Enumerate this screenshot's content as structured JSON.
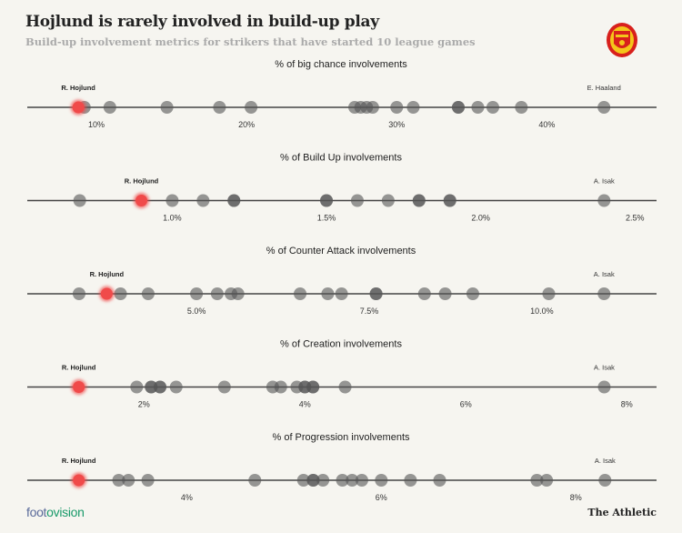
{
  "title": "Hojlund is rarely involved in build-up play",
  "subtitle": "Build-up involvement metrics for strikers that have started 10 league games",
  "footer": {
    "source_a": "foot",
    "source_b": "ovision",
    "publisher": "The Athletic"
  },
  "logo": {
    "name": "manchester-united-crest",
    "text": "Manchester United"
  },
  "colors": {
    "background": "#f6f5f0",
    "highlight": "#f04a4a",
    "dot": "#555555",
    "axis": "#444444"
  },
  "chart_data": [
    {
      "type": "scatter",
      "title": "% of big chance involvements",
      "xlim": [
        5.4,
        47.3
      ],
      "ticks": [
        10,
        20,
        30,
        40
      ],
      "tick_labels": [
        "10%",
        "20%",
        "30%",
        "40%"
      ],
      "highlight": {
        "name": "R. Hojlund",
        "value": 8.8
      },
      "top": {
        "name": "E. Haaland",
        "value": 43.8
      },
      "values": [
        9.2,
        10.9,
        14.7,
        18.2,
        20.3,
        27.2,
        27.6,
        28.0,
        28.4,
        30.0,
        31.1,
        34.1,
        34.1,
        35.4,
        36.4,
        38.3
      ]
    },
    {
      "type": "scatter",
      "title": "% of Build Up involvements",
      "xlim": [
        0.53,
        2.57
      ],
      "ticks": [
        1.0,
        1.5,
        2.0,
        2.5
      ],
      "tick_labels": [
        "1.0%",
        "1.5%",
        "2.0%",
        "2.5%"
      ],
      "highlight": {
        "name": "R. Hojlund",
        "value": 0.9
      },
      "top": {
        "name": "A. Isak",
        "value": 2.4
      },
      "values": [
        0.7,
        1.0,
        1.1,
        1.2,
        1.2,
        1.5,
        1.5,
        1.6,
        1.7,
        1.8,
        1.8,
        1.9,
        1.9
      ]
    },
    {
      "type": "scatter",
      "title": "% of Counter Attack involvements",
      "xlim": [
        2.55,
        11.66
      ],
      "ticks": [
        5.0,
        7.5,
        10.0
      ],
      "tick_labels": [
        "5.0%",
        "7.5%",
        "10.0%"
      ],
      "highlight": {
        "name": "R. Hojlund",
        "value": 3.7
      },
      "top": {
        "name": "A. Isak",
        "value": 10.9
      },
      "values": [
        3.3,
        3.9,
        4.3,
        5.0,
        5.3,
        5.5,
        5.6,
        6.5,
        6.9,
        7.1,
        7.6,
        7.6,
        8.3,
        8.6,
        9.0,
        10.1
      ]
    },
    {
      "type": "scatter",
      "title": "% of Creation involvements",
      "xlim": [
        0.55,
        8.37
      ],
      "ticks": [
        2,
        4,
        6,
        8
      ],
      "tick_labels": [
        "2%",
        "4%",
        "6%",
        "8%"
      ],
      "highlight": {
        "name": "R. Hojlund",
        "value": 1.19
      },
      "top": {
        "name": "A. Isak",
        "value": 7.72
      },
      "values": [
        1.91,
        2.09,
        2.09,
        2.2,
        2.2,
        2.4,
        3.0,
        3.6,
        3.7,
        3.9,
        4.0,
        4.0,
        4.1,
        4.1,
        4.5
      ]
    },
    {
      "type": "scatter",
      "title": "% of Progression involvements",
      "xlim": [
        2.36,
        8.83
      ],
      "ticks": [
        4,
        6,
        8
      ],
      "tick_labels": [
        "4%",
        "6%",
        "8%"
      ],
      "highlight": {
        "name": "R. Hojlund",
        "value": 2.89
      },
      "top": {
        "name": "A. Isak",
        "value": 8.3
      },
      "values": [
        3.3,
        3.4,
        3.6,
        4.7,
        5.2,
        5.3,
        5.3,
        5.4,
        5.6,
        5.7,
        5.8,
        6.0,
        6.3,
        6.6,
        7.6,
        7.7
      ]
    }
  ]
}
